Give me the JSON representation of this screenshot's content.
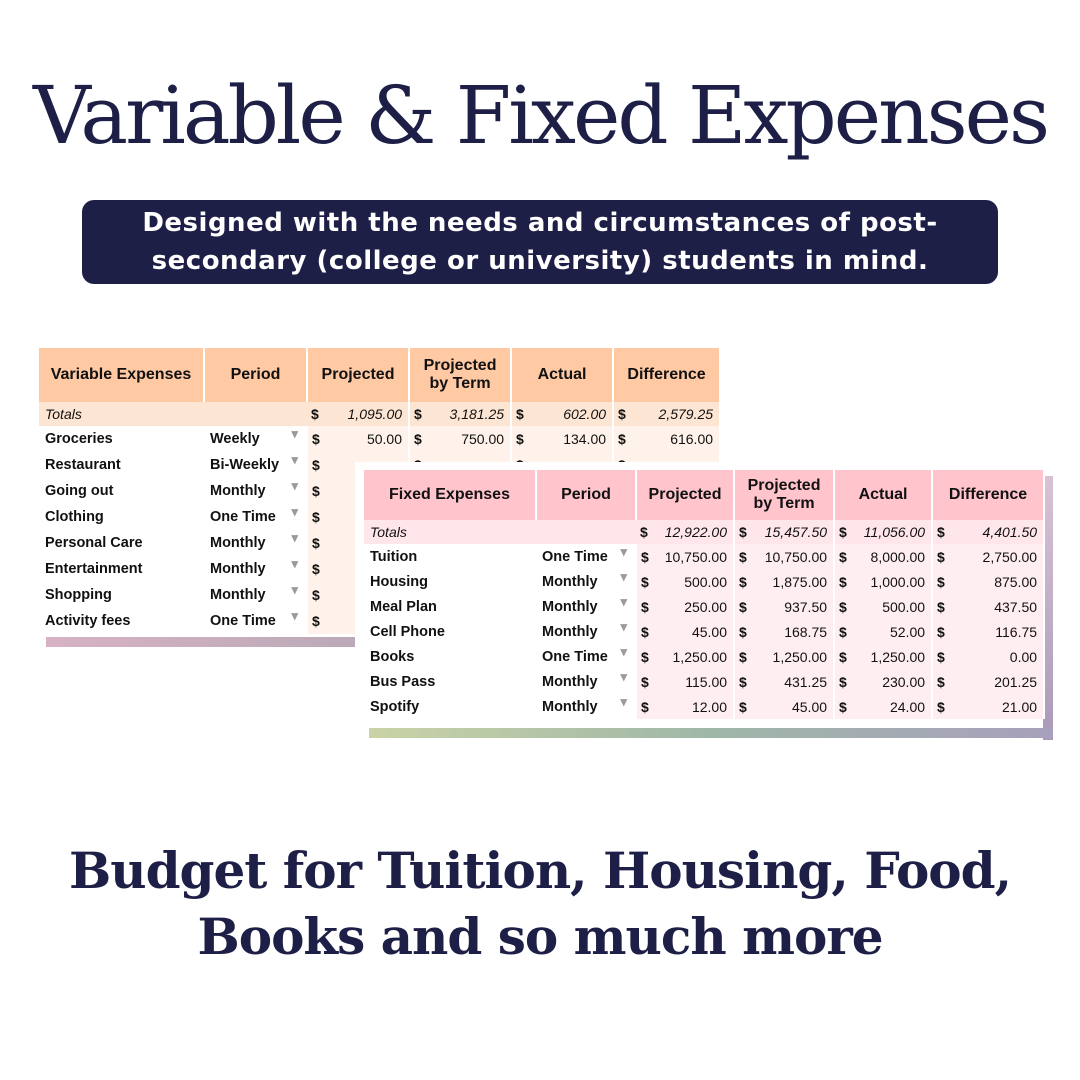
{
  "title": "Variable & Fixed Expenses",
  "subtitle_line1": "Designed with the needs and circumstances of post-",
  "subtitle_line2": "secondary (college or university) students in mind.",
  "headers": {
    "period": "Period",
    "projected": "Projected",
    "projected_by_term_line1": "Projected",
    "projected_by_term_line2": "by Term",
    "actual": "Actual",
    "difference": "Difference",
    "dollar": "$",
    "totals": "Totals"
  },
  "variable": {
    "title": "Variable Expenses",
    "totals": {
      "projected": "1,095.00",
      "by_term": "3,181.25",
      "actual": "602.00",
      "difference": "2,579.25"
    },
    "rows": [
      {
        "name": "Groceries",
        "period": "Weekly",
        "projected": "50.00",
        "by_term": "750.00",
        "actual": "134.00",
        "difference": "616.00"
      },
      {
        "name": "Restaurant",
        "period": "Bi-Weekly"
      },
      {
        "name": "Going out",
        "period": "Monthly"
      },
      {
        "name": "Clothing",
        "period": "One Time"
      },
      {
        "name": "Personal Care",
        "period": "Monthly"
      },
      {
        "name": "Entertainment",
        "period": "Monthly"
      },
      {
        "name": "Shopping",
        "period": "Monthly"
      },
      {
        "name": "Activity fees",
        "period": "One Time"
      }
    ]
  },
  "fixed": {
    "title": "Fixed Expenses",
    "totals": {
      "projected": "12,922.00",
      "by_term": "15,457.50",
      "actual": "11,056.00",
      "difference": "4,401.50"
    },
    "rows": [
      {
        "name": "Tuition",
        "period": "One Time",
        "projected": "10,750.00",
        "by_term": "10,750.00",
        "actual": "8,000.00",
        "difference": "2,750.00"
      },
      {
        "name": "Housing",
        "period": "Monthly",
        "projected": "500.00",
        "by_term": "1,875.00",
        "actual": "1,000.00",
        "difference": "875.00"
      },
      {
        "name": "Meal Plan",
        "period": "Monthly",
        "projected": "250.00",
        "by_term": "937.50",
        "actual": "500.00",
        "difference": "437.50"
      },
      {
        "name": "Cell Phone",
        "period": "Monthly",
        "projected": "45.00",
        "by_term": "168.75",
        "actual": "52.00",
        "difference": "116.75"
      },
      {
        "name": "Books",
        "period": "One Time",
        "projected": "1,250.00",
        "by_term": "1,250.00",
        "actual": "1,250.00",
        "difference": "0.00"
      },
      {
        "name": "Bus Pass",
        "period": "Monthly",
        "projected": "115.00",
        "by_term": "431.25",
        "actual": "230.00",
        "difference": "201.25"
      },
      {
        "name": "Spotify",
        "period": "Monthly",
        "projected": "12.00",
        "by_term": "45.00",
        "actual": "24.00",
        "difference": "21.00"
      }
    ]
  },
  "tagline_line1": "Budget for Tuition, Housing, Food,",
  "tagline_line2": "Books and so much more"
}
